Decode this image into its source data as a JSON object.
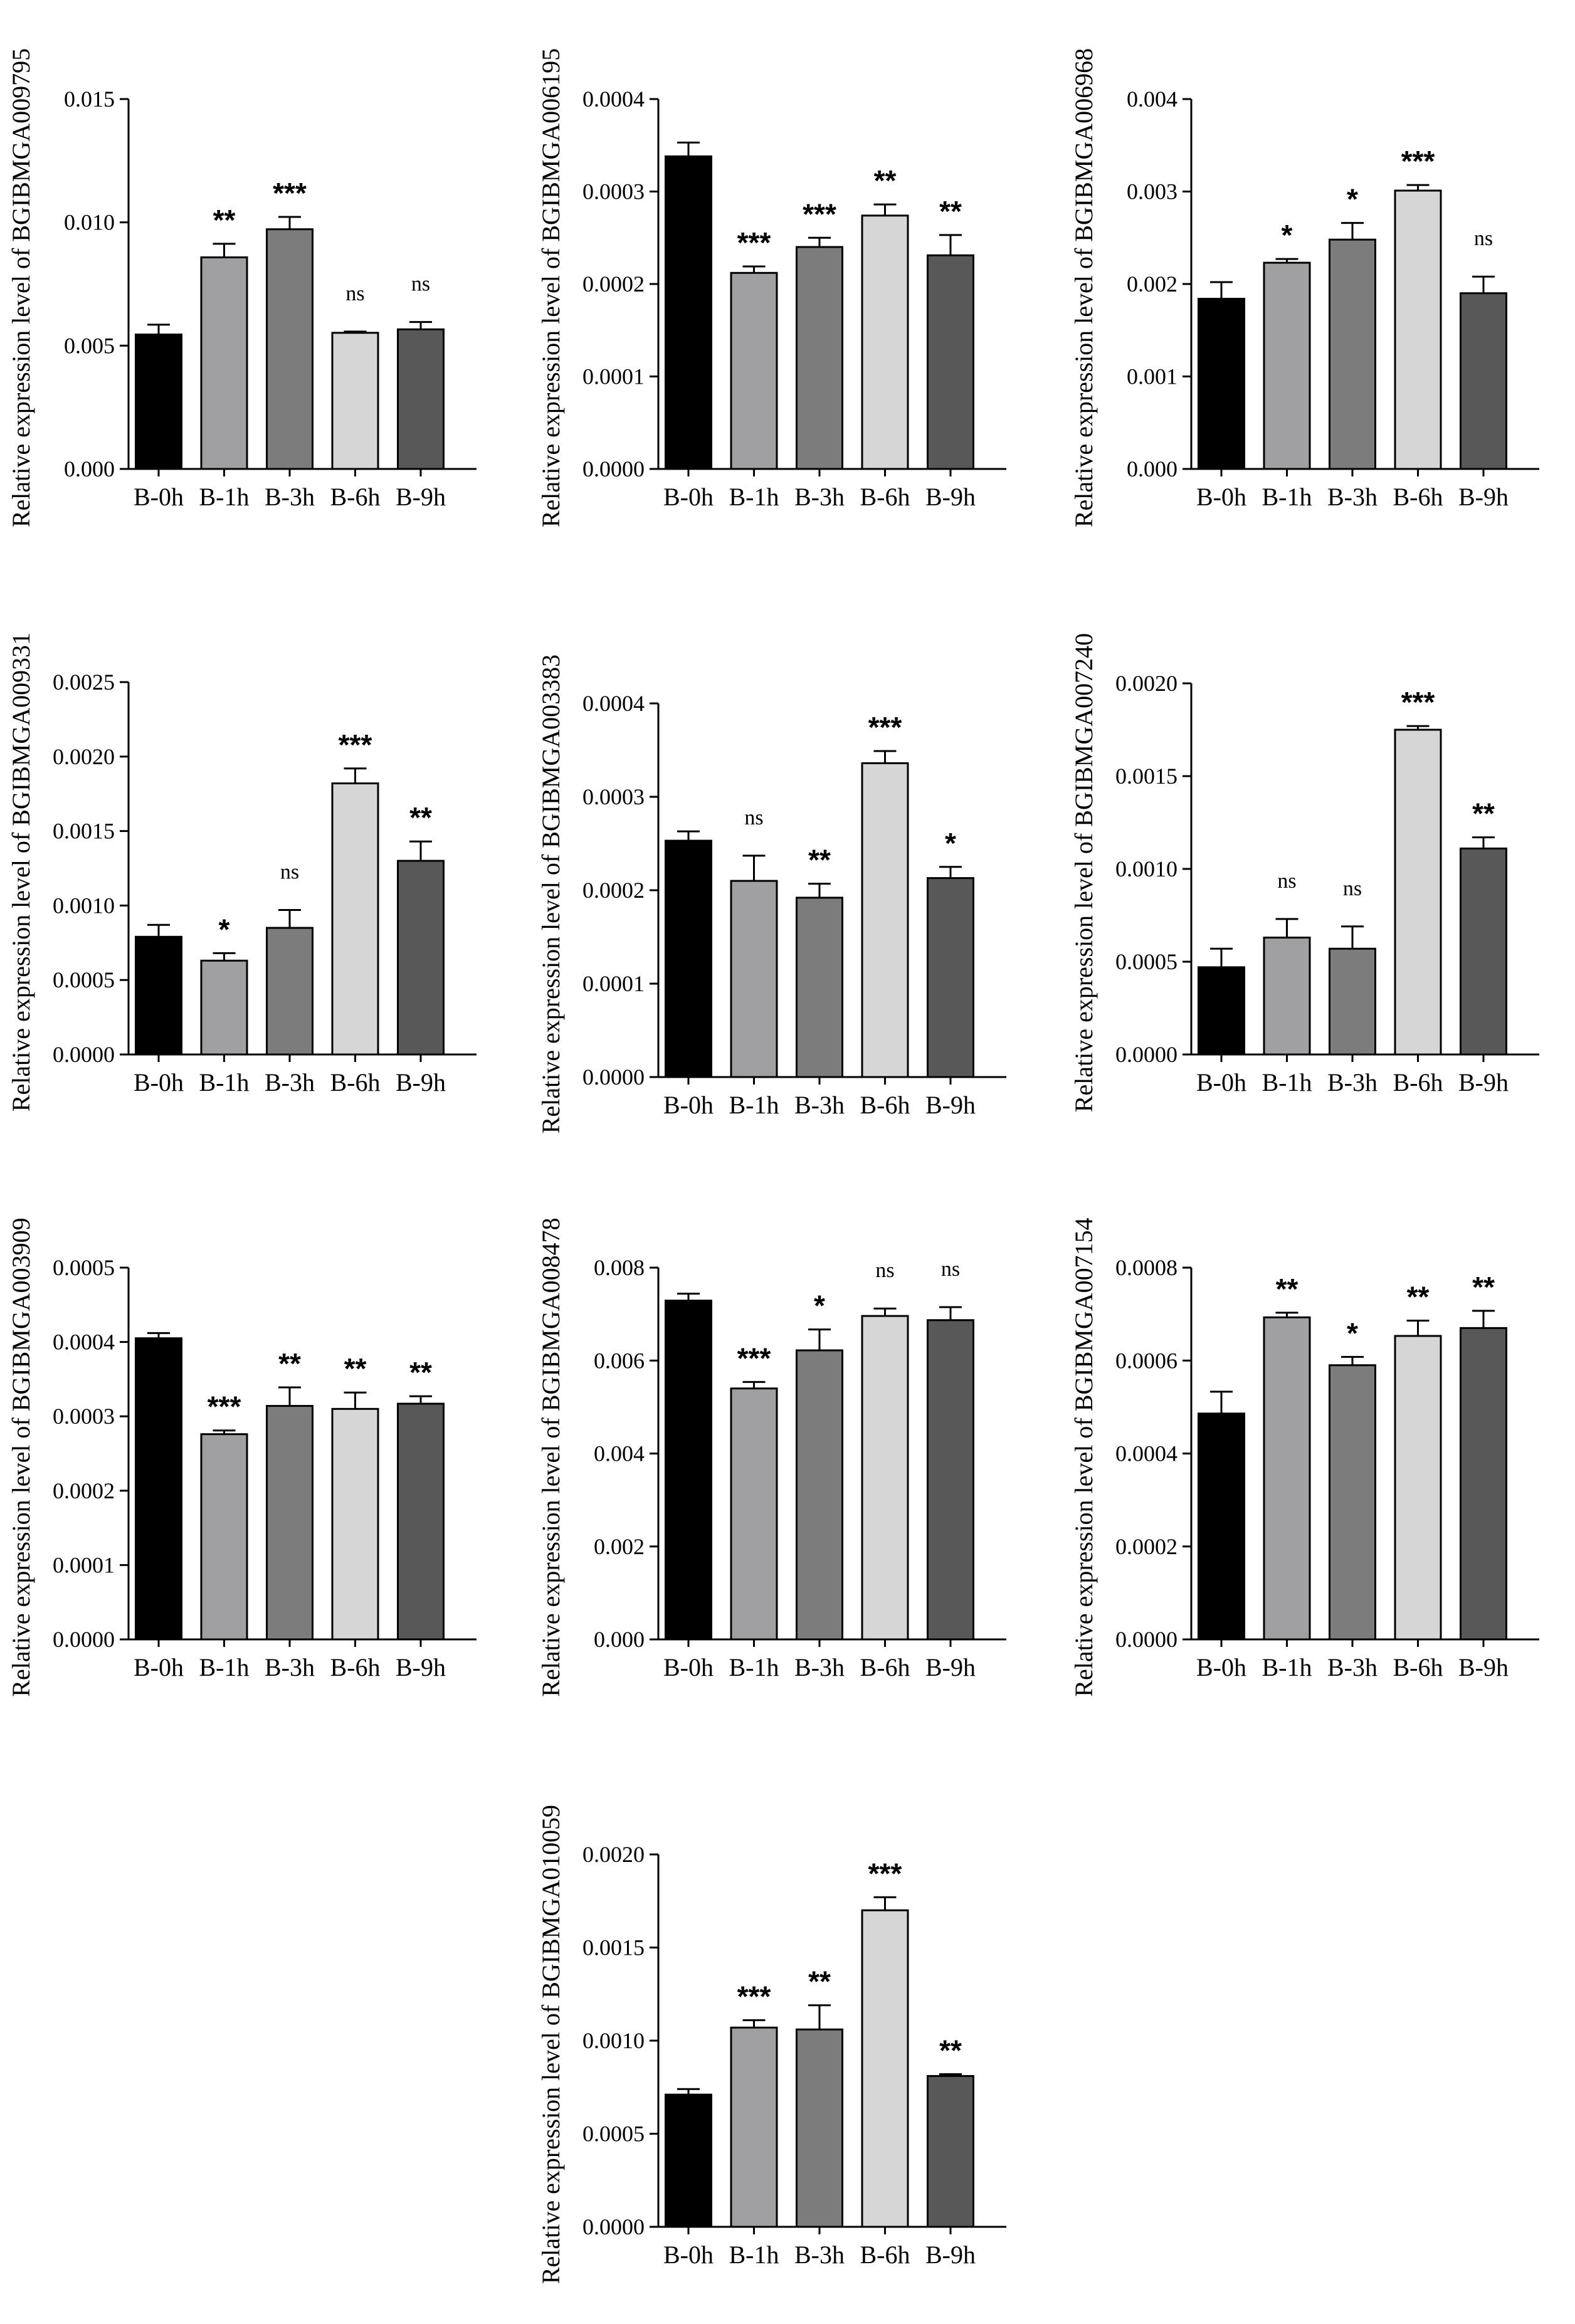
{
  "figure": {
    "bar_colors": [
      "#000000",
      "#a0a0a2",
      "#7c7c7c",
      "#d6d6d6",
      "#585858"
    ],
    "bar_stroke": "#000000"
  },
  "chart_data": [
    {
      "type": "bar",
      "ylabel": "Relative expression level of BGIBMGA009795",
      "ylim": [
        0,
        0.015
      ],
      "yticks": [
        0.0,
        0.005,
        0.01,
        0.015
      ],
      "ytick_labels": [
        "0.000",
        "0.005",
        "0.010",
        "0.015"
      ],
      "categories": [
        "B-0h",
        "B-1h",
        "B-3h",
        "B-6h",
        "B-9h"
      ],
      "values": [
        0.00545,
        0.00858,
        0.00972,
        0.00552,
        0.00566
      ],
      "errors": [
        0.0004,
        0.00055,
        0.0005,
        5e-05,
        0.0003
      ],
      "significance": [
        "",
        "**",
        "***",
        "ns",
        "ns"
      ]
    },
    {
      "type": "bar",
      "ylabel": "Relative expression level of BGIBMGA006195",
      "ylim": [
        0,
        0.0004
      ],
      "yticks": [
        0,
        0.0001,
        0.0002,
        0.0003,
        0.0004
      ],
      "ytick_labels": [
        "0.0000",
        "0.0001",
        "0.0002",
        "0.0003",
        "0.0004"
      ],
      "categories": [
        "B-0h",
        "B-1h",
        "B-3h",
        "B-6h",
        "B-9h"
      ],
      "values": [
        0.000338,
        0.000212,
        0.00024,
        0.000274,
        0.000231
      ],
      "errors": [
        1.5e-05,
        7e-06,
        1e-05,
        1.2e-05,
        2.2e-05
      ],
      "significance": [
        "",
        "***",
        "***",
        "**",
        "**"
      ]
    },
    {
      "type": "bar",
      "ylabel": "Relative expression level of BGIBMGA006968",
      "ylim": [
        0,
        0.004
      ],
      "yticks": [
        0,
        0.001,
        0.002,
        0.003,
        0.004
      ],
      "ytick_labels": [
        "0.000",
        "0.001",
        "0.002",
        "0.003",
        "0.004"
      ],
      "categories": [
        "B-0h",
        "B-1h",
        "B-3h",
        "B-6h",
        "B-9h"
      ],
      "values": [
        0.00184,
        0.00223,
        0.00248,
        0.00301,
        0.0019
      ],
      "errors": [
        0.00018,
        4e-05,
        0.00018,
        6e-05,
        0.00018
      ],
      "significance": [
        "",
        "*",
        "*",
        "***",
        "ns"
      ]
    },
    {
      "type": "bar",
      "ylabel": "Relative expression level of BGIBMGA009331",
      "ylim": [
        0,
        0.0025
      ],
      "yticks": [
        0,
        0.0005,
        0.001,
        0.0015,
        0.002,
        0.0025
      ],
      "ytick_labels": [
        "0.0000",
        "0.0005",
        "0.0010",
        "0.0015",
        "0.0020",
        "0.0025"
      ],
      "categories": [
        "B-0h",
        "B-1h",
        "B-3h",
        "B-6h",
        "B-9h"
      ],
      "values": [
        0.00079,
        0.00063,
        0.00085,
        0.00182,
        0.0013
      ],
      "errors": [
        8e-05,
        5e-05,
        0.00012,
        0.0001,
        0.00013
      ],
      "significance": [
        "",
        "*",
        "ns",
        "***",
        "**"
      ]
    },
    {
      "type": "bar",
      "ylabel": "Relative expression level of BGIBMGA003383",
      "ylim": [
        0,
        0.0004
      ],
      "yticks": [
        0,
        0.0001,
        0.0002,
        0.0003,
        0.0004
      ],
      "ytick_labels": [
        "0.0000",
        "0.0001",
        "0.0002",
        "0.0003",
        "0.0004"
      ],
      "categories": [
        "B-0h",
        "B-1h",
        "B-3h",
        "B-6h",
        "B-9h"
      ],
      "values": [
        0.000253,
        0.00021,
        0.000192,
        0.000336,
        0.000213
      ],
      "errors": [
        1e-05,
        2.7e-05,
        1.5e-05,
        1.3e-05,
        1.2e-05
      ],
      "significance": [
        "",
        "ns",
        "**",
        "***",
        "*"
      ]
    },
    {
      "type": "bar",
      "ylabel": "Relative expression level of BGIBMGA007240",
      "ylim": [
        0,
        0.002
      ],
      "yticks": [
        0,
        0.0005,
        0.001,
        0.0015,
        0.002
      ],
      "ytick_labels": [
        "0.0000",
        "0.0005",
        "0.0010",
        "0.0015",
        "0.0020"
      ],
      "categories": [
        "B-0h",
        "B-1h",
        "B-3h",
        "B-6h",
        "B-9h"
      ],
      "values": [
        0.00047,
        0.00063,
        0.00057,
        0.00175,
        0.00111
      ],
      "errors": [
        0.0001,
        0.0001,
        0.00012,
        2e-05,
        6e-05
      ],
      "significance": [
        "",
        "ns",
        "ns",
        "***",
        "**"
      ]
    },
    {
      "type": "bar",
      "ylabel": "Relative expression level of BGIBMGA003909",
      "ylim": [
        0,
        0.0005
      ],
      "yticks": [
        0,
        0.0001,
        0.0002,
        0.0003,
        0.0004,
        0.0005
      ],
      "ytick_labels": [
        "0.0000",
        "0.0001",
        "0.0002",
        "0.0003",
        "0.0004",
        "0.0005"
      ],
      "categories": [
        "B-0h",
        "B-1h",
        "B-3h",
        "B-6h",
        "B-9h"
      ],
      "values": [
        0.000405,
        0.000276,
        0.000314,
        0.00031,
        0.000317
      ],
      "errors": [
        7e-06,
        5e-06,
        2.5e-05,
        2.2e-05,
        1e-05
      ],
      "significance": [
        "",
        "***",
        "**",
        "**",
        "**"
      ]
    },
    {
      "type": "bar",
      "ylabel": "Relative expression level of BGIBMGA008478",
      "ylim": [
        0,
        0.008
      ],
      "yticks": [
        0,
        0.002,
        0.004,
        0.006,
        0.008
      ],
      "ytick_labels": [
        "0.000",
        "0.002",
        "0.004",
        "0.006",
        "0.008"
      ],
      "categories": [
        "B-0h",
        "B-1h",
        "B-3h",
        "B-6h",
        "B-9h"
      ],
      "values": [
        0.00729,
        0.0054,
        0.00622,
        0.00696,
        0.00687
      ],
      "errors": [
        0.00015,
        0.00014,
        0.00045,
        0.00016,
        0.00028
      ],
      "significance": [
        "",
        "***",
        "*",
        "ns",
        "ns"
      ]
    },
    {
      "type": "bar",
      "ylabel": "Relative expression level of BGIBMGA007154",
      "ylim": [
        0,
        0.0008
      ],
      "yticks": [
        0,
        0.0002,
        0.0004,
        0.0006,
        0.0008
      ],
      "ytick_labels": [
        "0.0000",
        "0.0002",
        "0.0004",
        "0.0006",
        "0.0008"
      ],
      "categories": [
        "B-0h",
        "B-1h",
        "B-3h",
        "B-6h",
        "B-9h"
      ],
      "values": [
        0.000486,
        0.000693,
        0.00059,
        0.000653,
        0.00067
      ],
      "errors": [
        4.7e-05,
        1e-05,
        1.8e-05,
        3.3e-05,
        3.7e-05
      ],
      "significance": [
        "",
        "**",
        "*",
        "**",
        "**"
      ]
    },
    {
      "type": "bar",
      "ylabel": "Relative expression level of BGIBMGA010059",
      "ylim": [
        0,
        0.002
      ],
      "yticks": [
        0,
        0.0005,
        0.001,
        0.0015,
        0.002
      ],
      "ytick_labels": [
        "0.0000",
        "0.0005",
        "0.0010",
        "0.0015",
        "0.0020"
      ],
      "categories": [
        "B-0h",
        "B-1h",
        "B-3h",
        "B-6h",
        "B-9h"
      ],
      "values": [
        0.00071,
        0.00107,
        0.00106,
        0.0017,
        0.00081
      ],
      "errors": [
        3e-05,
        4e-05,
        0.00013,
        7e-05,
        1e-05
      ],
      "significance": [
        "",
        "***",
        "**",
        "***",
        "**"
      ]
    }
  ]
}
